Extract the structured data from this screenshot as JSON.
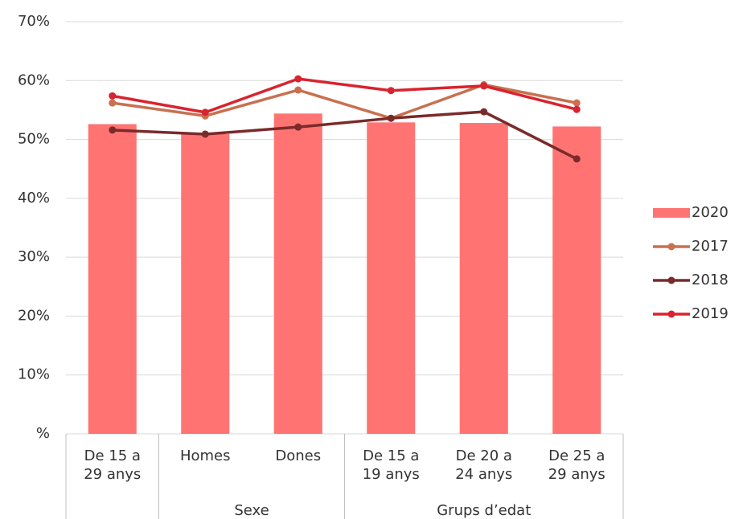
{
  "chart_data": {
    "type": "bar_line",
    "categories": [
      "De 15 a 29 anys",
      "Homes",
      "Dones",
      "De 15 a 19 anys",
      "De 20 a 24 anys",
      "De 25 a 29 anys"
    ],
    "groups": [
      {
        "label": "Sexe",
        "start": 1,
        "end": 2
      },
      {
        "label": "Grups d’edat",
        "start": 3,
        "end": 5
      }
    ],
    "series": [
      {
        "name": "2020",
        "type": "bar",
        "color": "#ff7373",
        "values": [
          52.6,
          50.9,
          54.4,
          52.9,
          52.8,
          52.2
        ]
      },
      {
        "name": "2017",
        "type": "line",
        "color": "#c8704f",
        "values": [
          56.2,
          54.0,
          58.4,
          53.6,
          59.3,
          56.2
        ]
      },
      {
        "name": "2018",
        "type": "line",
        "color": "#7b2a2a",
        "values": [
          51.6,
          50.9,
          52.1,
          53.6,
          54.7,
          46.7
        ]
      },
      {
        "name": "2019",
        "type": "line",
        "color": "#d9232e",
        "values": [
          57.4,
          54.6,
          60.3,
          58.3,
          59.1,
          55.1
        ]
      }
    ],
    "ylim": [
      0,
      70
    ],
    "yticks": [
      {
        "value": 0,
        "label": "%"
      },
      {
        "value": 10,
        "label": "10%"
      },
      {
        "value": 20,
        "label": "20%"
      },
      {
        "value": 30,
        "label": "30%"
      },
      {
        "value": 40,
        "label": "40%"
      },
      {
        "value": 50,
        "label": "50%"
      },
      {
        "value": 60,
        "label": "60%"
      },
      {
        "value": 70,
        "label": "70%"
      }
    ],
    "grid": true,
    "legend": "right"
  }
}
